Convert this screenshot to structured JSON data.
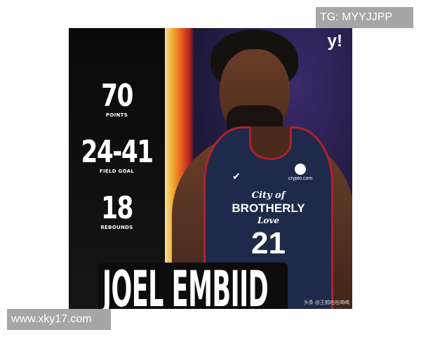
{
  "stats": [
    {
      "value": "70",
      "label": "POINTS"
    },
    {
      "value": "24-41",
      "label": "FIELD GOAL"
    },
    {
      "value": "18",
      "label": "REBOUNDS"
    }
  ],
  "player": {
    "name": "JOEL EMBIID",
    "jersey_line1": "City of",
    "jersey_line2": "BROTHERLY",
    "jersey_line3": "Love",
    "number": "21",
    "sponsor": "crypto.com"
  },
  "logo": "y!",
  "credit": "头条 @王鹤吃吃喝喝",
  "watermarks": {
    "top": "TG: MYYJJPP",
    "bottom": "www.xky17.com"
  }
}
